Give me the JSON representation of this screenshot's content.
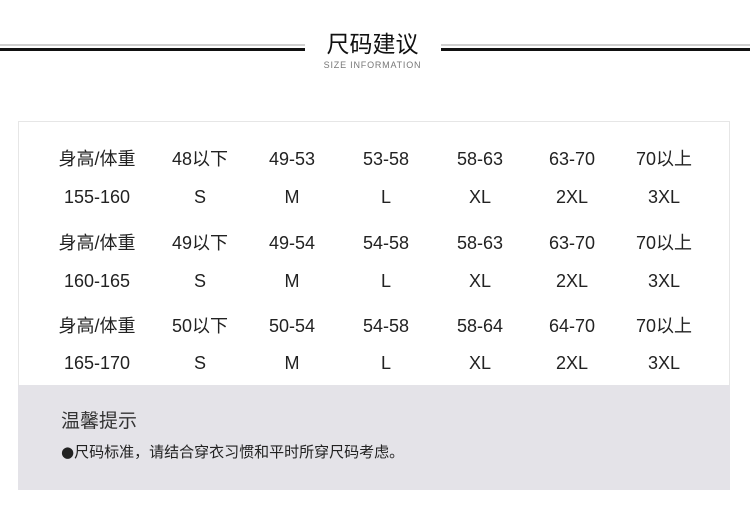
{
  "header": {
    "title": "尺码建议",
    "subtitle": "SIZE INFORMATION"
  },
  "table": {
    "rows": [
      {
        "weights": [
          "身高/体重",
          "48以下",
          "49-53",
          "53-58",
          "58-63",
          "63-70",
          "70以上"
        ],
        "sizes": [
          "155-160",
          "S",
          "M",
          "L",
          "XL",
          "2XL",
          "3XL"
        ]
      },
      {
        "weights": [
          "身高/体重",
          "49以下",
          "49-54",
          "54-58",
          "58-63",
          "63-70",
          "70以上"
        ],
        "sizes": [
          "160-165",
          "S",
          "M",
          "L",
          "XL",
          "2XL",
          "3XL"
        ]
      },
      {
        "weights": [
          "身高/体重",
          "50以下",
          "50-54",
          "54-58",
          "58-64",
          "64-70",
          "70以上"
        ],
        "sizes": [
          "165-170",
          "S",
          "M",
          "L",
          "XL",
          "2XL",
          "3XL"
        ]
      }
    ]
  },
  "notes": {
    "title": "温馨提示",
    "text": "●尺码标准，请结合穿衣习惯和平时所穿尺码考虑。",
    "background": "#e4e3e8"
  }
}
